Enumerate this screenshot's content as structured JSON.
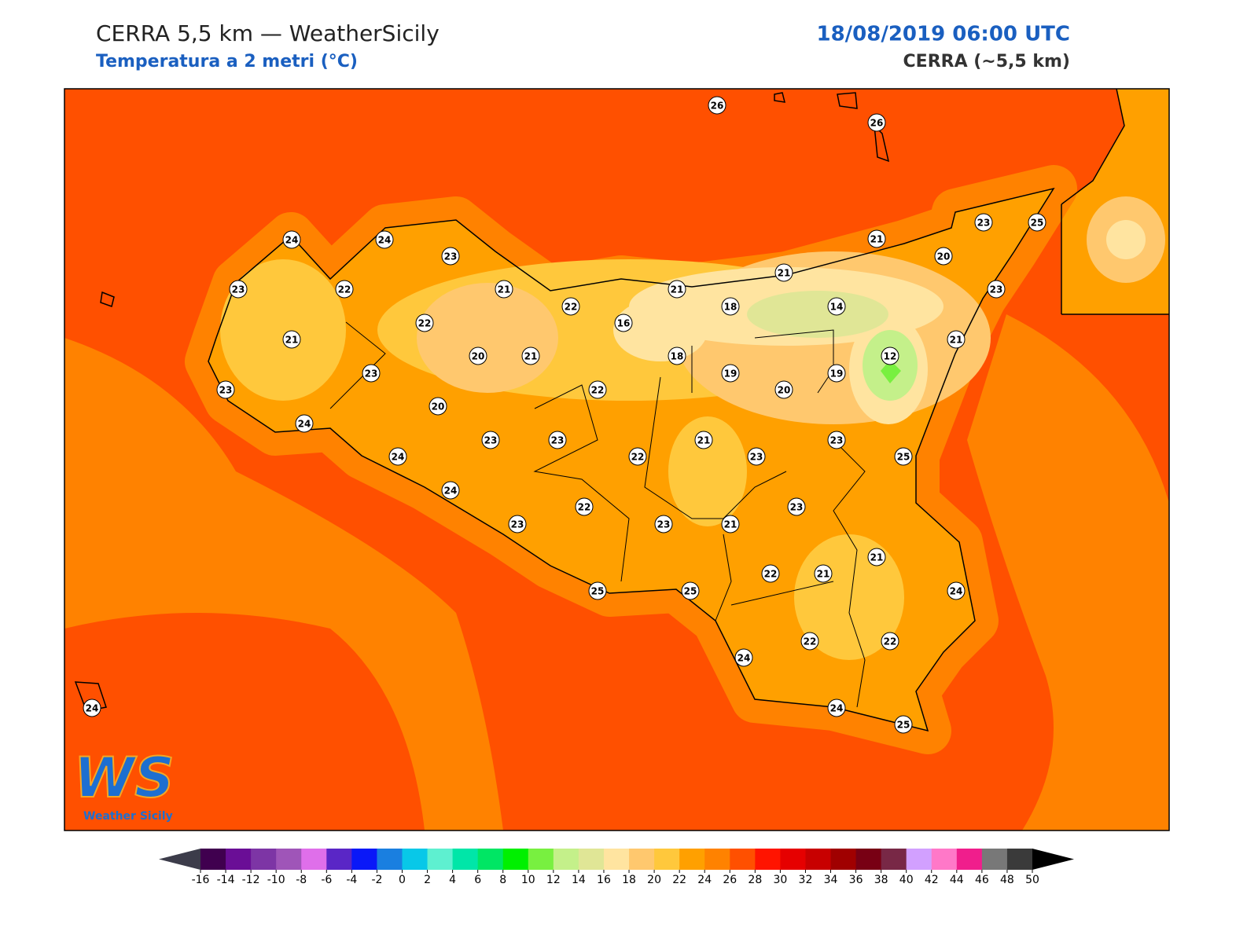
{
  "header": {
    "title": "CERRA 5,5 km — WeatherSicily",
    "subtitle": "Temperatura a 2 metri (°C)",
    "datetime": "18/08/2019 06:00 UTC",
    "model": "CERRA (~5,5 km)"
  },
  "logo": {
    "mark": "WS",
    "name": "Weather Sicily"
  },
  "stations": [
    26,
    26,
    24,
    24,
    23,
    23,
    22,
    21,
    22,
    21,
    21,
    21,
    20,
    23,
    25,
    23,
    18,
    14,
    16,
    22,
    21,
    21,
    12,
    20,
    21,
    18,
    19,
    19,
    23,
    23,
    22,
    20,
    20,
    24,
    23,
    23,
    21,
    23,
    24,
    22,
    23,
    25,
    24,
    22,
    23,
    23,
    23,
    21,
    21,
    22,
    21,
    25,
    25,
    24,
    22,
    22,
    24,
    24,
    24,
    25
  ],
  "colorbar": {
    "ticks": [
      -16,
      -14,
      -12,
      -10,
      -8,
      -6,
      -4,
      -2,
      0,
      2,
      4,
      6,
      8,
      10,
      12,
      14,
      16,
      18,
      20,
      22,
      24,
      26,
      28,
      30,
      32,
      34,
      36,
      38,
      40,
      42,
      44,
      46,
      48,
      50
    ],
    "colors": [
      "#40004f",
      "#6a0e96",
      "#7d35a5",
      "#9f55b8",
      "#df6fea",
      "#5a26c6",
      "#0a18f8",
      "#1a7fe0",
      "#08c8e8",
      "#5ef0d0",
      "#00e6a8",
      "#00e664",
      "#00f000",
      "#78f040",
      "#c4f08a",
      "#e0e696",
      "#ffe4a0",
      "#ffc86e",
      "#ffc83c",
      "#ffa000",
      "#ff8200",
      "#ff5000",
      "#ff1400",
      "#e60000",
      "#c80000",
      "#a00000",
      "#780014",
      "#782846",
      "#d2a0ff",
      "#ff78c8",
      "#f01e8c",
      "#787878",
      "#3a3a3a"
    ],
    "under_color": "#3c3c4a",
    "over_color": "#000000"
  }
}
